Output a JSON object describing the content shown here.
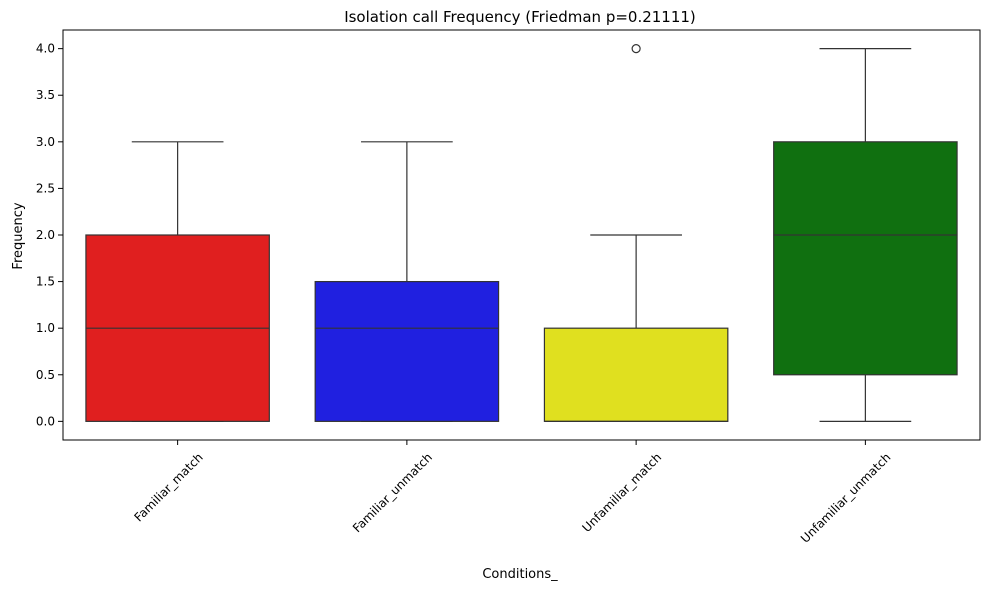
{
  "chart_data": {
    "type": "box",
    "title": "Isolation call Frequency (Friedman p=0.21111)",
    "xlabel": "Conditions_",
    "ylabel": "Frequency",
    "ylim": [
      -0.2,
      4.2
    ],
    "yticks": [
      0.0,
      0.5,
      1.0,
      1.5,
      2.0,
      2.5,
      3.0,
      3.5,
      4.0
    ],
    "ytick_labels": [
      "0.0",
      "0.5",
      "1.0",
      "1.5",
      "2.0",
      "2.5",
      "3.0",
      "3.5",
      "4.0"
    ],
    "grid": false,
    "categories": [
      "Familiar_match",
      "Familiar_unmatch",
      "Unfamiliar_match",
      "Unfamiliar_unmatch"
    ],
    "boxes": [
      {
        "category": "Familiar_match",
        "color": "#e01f1f",
        "whisker_low": 0,
        "q1": 0,
        "median": 1,
        "q3": 2,
        "whisker_high": 3,
        "outliers": []
      },
      {
        "category": "Familiar_unmatch",
        "color": "#2020e0",
        "whisker_low": 0,
        "q1": 0,
        "median": 1,
        "q3": 1.5,
        "whisker_high": 3,
        "outliers": []
      },
      {
        "category": "Unfamiliar_match",
        "color": "#e0e01f",
        "whisker_low": 0,
        "q1": 0,
        "median": 0,
        "q3": 1,
        "whisker_high": 2,
        "outliers": [
          4
        ]
      },
      {
        "category": "Unfamiliar_unmatch",
        "color": "#107010",
        "whisker_low": 0,
        "q1": 0.5,
        "median": 2,
        "q3": 3,
        "whisker_high": 4,
        "outliers": []
      }
    ]
  }
}
